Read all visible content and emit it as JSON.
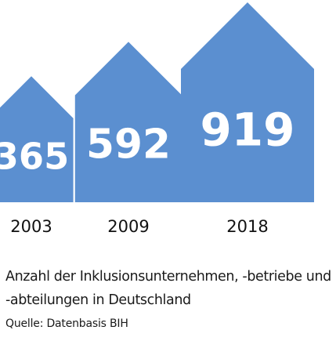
{
  "chart_data": {
    "type": "bar",
    "categories": [
      "2003",
      "2009",
      "2018"
    ],
    "values": [
      365,
      592,
      919
    ],
    "title": "Anzahl der Inklusionsunternehmen, -betriebe und -abteilungen in Deutschland",
    "source": "Quelle: Datenbasis BIH",
    "colors": {
      "bar": "#5b8fd0",
      "value_label": "#ffffff",
      "category_label": "#111111"
    }
  }
}
